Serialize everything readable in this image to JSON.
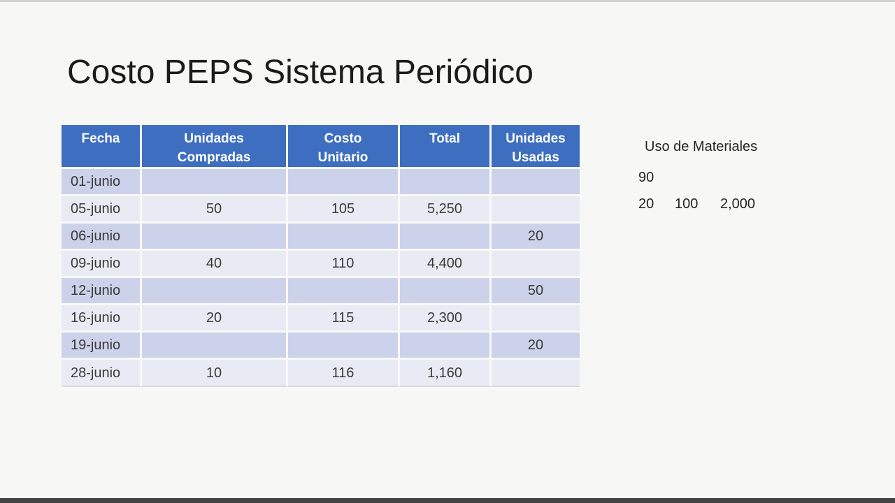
{
  "slide": {
    "title": "Costo PEPS Sistema Periódico"
  },
  "table": {
    "headers": [
      "Fecha",
      "Unidades\nCompradas",
      "Costo\nUnitario",
      "Total",
      "Unidades\nUsadas"
    ],
    "rows": [
      [
        "01-junio",
        "",
        "",
        "",
        ""
      ],
      [
        "05-junio",
        "50",
        "105",
        "5,250",
        ""
      ],
      [
        "06-junio",
        "",
        "",
        "",
        "20"
      ],
      [
        "09-junio",
        "40",
        "110",
        "4,400",
        ""
      ],
      [
        "12-junio",
        "",
        "",
        "",
        "50"
      ],
      [
        "16-junio",
        "20",
        "115",
        "2,300",
        ""
      ],
      [
        "19-junio",
        "",
        "",
        "",
        "20"
      ],
      [
        "28-junio",
        "10",
        "116",
        "1,160",
        ""
      ]
    ]
  },
  "side_note": {
    "title": "Uso de Materiales",
    "line1": "90",
    "line2": [
      "20",
      "100",
      "2,000"
    ]
  },
  "colors": {
    "header_bg": "#3d6ec0",
    "band_dark": "#ccd2e9",
    "band_light": "#e9ebf4",
    "background": "#f7f7f6",
    "bottom_bar": "#434343",
    "header_text": "#ffffff",
    "body_text": "#3a3a3a"
  }
}
